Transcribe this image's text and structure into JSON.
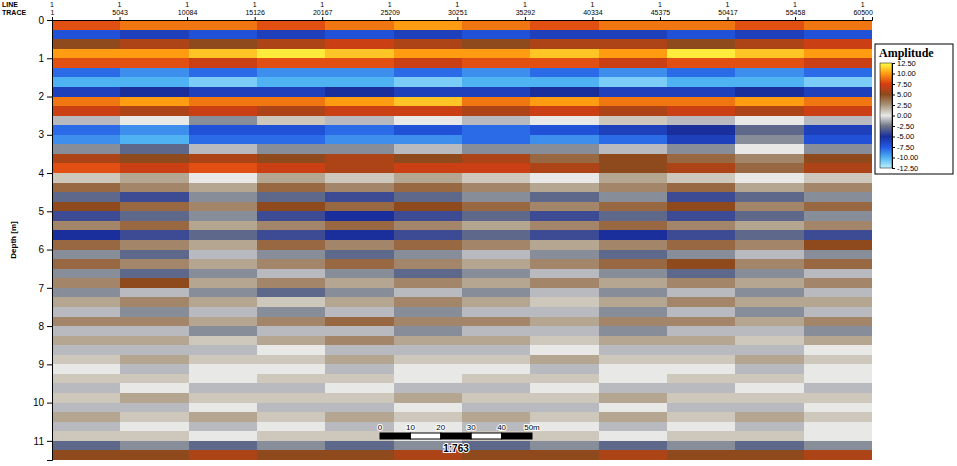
{
  "chart_data": {
    "type": "heatmap",
    "header_labels": [
      "LINE",
      "TRACE"
    ],
    "line_numbers": [
      1,
      1,
      1,
      1,
      1,
      1,
      1,
      1,
      1,
      1,
      1,
      1,
      1
    ],
    "xticks": [
      1,
      5043,
      10084,
      15126,
      20167,
      25209,
      30251,
      35292,
      40334,
      45375,
      50417,
      55458,
      60500
    ],
    "xlim": [
      1,
      61200
    ],
    "ylabel": "Depth [m]",
    "ylim": [
      0,
      11.5
    ],
    "yticks": [
      0,
      1,
      2,
      3,
      4,
      5,
      6,
      7,
      8,
      9,
      10,
      11
    ],
    "x": [
      2550,
      7650,
      12750,
      17850,
      22950,
      28050,
      33150,
      38250,
      43350,
      48450,
      53550,
      58650
    ],
    "y": [
      0.125,
      0.375,
      0.625,
      0.875,
      1.125,
      1.375,
      1.625,
      1.875,
      2.125,
      2.375,
      2.625,
      2.875,
      3.125,
      3.375,
      3.625,
      3.875,
      4.125,
      4.375,
      4.625,
      4.875,
      5.125,
      5.375,
      5.625,
      5.875,
      6.125,
      6.375,
      6.625,
      6.875,
      7.125,
      7.375,
      7.625,
      7.875,
      8.125,
      8.375,
      8.625,
      8.875,
      9.125,
      9.375,
      9.625,
      9.875,
      10.125,
      10.375,
      10.625,
      10.875,
      11.125,
      11.375
    ],
    "cells": [
      [
        8,
        9,
        9,
        8,
        9,
        10,
        9,
        8,
        9,
        9,
        8,
        9
      ],
      [
        -7,
        -6,
        -7,
        -6,
        -7,
        -6,
        -7,
        -6,
        -6,
        -7,
        -6,
        -7
      ],
      [
        5,
        6,
        5,
        6,
        7,
        6,
        5,
        6,
        6,
        5,
        6,
        7
      ],
      [
        10,
        10,
        11,
        12,
        11,
        10,
        10,
        11,
        10,
        12,
        11,
        10
      ],
      [
        8,
        8,
        7,
        8,
        8,
        7,
        8,
        8,
        7,
        8,
        8,
        7
      ],
      [
        -8,
        -9,
        -8,
        -9,
        -9,
        -8,
        -9,
        -8,
        -9,
        -8,
        -9,
        -8
      ],
      [
        -10,
        -10,
        -11,
        -10,
        -10,
        -11,
        -10,
        -10,
        -11,
        -10,
        -10,
        -11
      ],
      [
        -6,
        -5,
        -6,
        -6,
        -5,
        -6,
        -6,
        -5,
        -6,
        -6,
        -5,
        -6
      ],
      [
        9,
        10,
        9,
        9,
        10,
        11,
        9,
        10,
        9,
        9,
        10,
        9
      ],
      [
        7,
        6,
        7,
        6,
        7,
        7,
        6,
        7,
        6,
        7,
        6,
        7
      ],
      [
        -1,
        0,
        -2,
        1,
        -1,
        0,
        -1,
        0,
        1,
        -1,
        0,
        -1
      ],
      [
        -8,
        -9,
        -7,
        -7,
        -8,
        -7,
        -8,
        -7,
        -6,
        -5,
        -3,
        -6
      ],
      [
        -9,
        -10,
        -8,
        -8,
        -9,
        -9,
        -8,
        -9,
        -8,
        -6,
        -2,
        -7
      ],
      [
        -2,
        -3,
        -1,
        -2,
        -2,
        -1,
        -2,
        -2,
        -1,
        -2,
        0,
        -2
      ],
      [
        6,
        5,
        6,
        5,
        6,
        5,
        6,
        4,
        5,
        4,
        3,
        5
      ],
      [
        8,
        7,
        8,
        7,
        6,
        7,
        7,
        6,
        5,
        6,
        4,
        6
      ],
      [
        1,
        2,
        0,
        2,
        1,
        2,
        1,
        0,
        2,
        1,
        0,
        1
      ],
      [
        4,
        3,
        2,
        4,
        3,
        4,
        3,
        2,
        3,
        4,
        2,
        3
      ],
      [
        -3,
        -4,
        -2,
        -3,
        -4,
        -3,
        -2,
        -3,
        -2,
        -4,
        -3,
        -2
      ],
      [
        5,
        4,
        3,
        5,
        4,
        5,
        4,
        3,
        4,
        5,
        3,
        4
      ],
      [
        -4,
        -3,
        -2,
        -4,
        -5,
        -4,
        -3,
        -4,
        -3,
        -4,
        -3,
        -2
      ],
      [
        3,
        4,
        2,
        3,
        4,
        3,
        2,
        3,
        4,
        3,
        2,
        3
      ],
      [
        -5,
        -4,
        -3,
        -4,
        -5,
        -4,
        -3,
        -4,
        -5,
        -4,
        -3,
        -4
      ],
      [
        4,
        3,
        2,
        4,
        3,
        4,
        3,
        2,
        3,
        4,
        3,
        5
      ],
      [
        -2,
        -3,
        -1,
        -2,
        -3,
        -2,
        -1,
        -2,
        -3,
        -2,
        -1,
        -2
      ],
      [
        4,
        3,
        2,
        3,
        4,
        3,
        2,
        3,
        4,
        5,
        3,
        4
      ],
      [
        -2,
        -3,
        -2,
        -1,
        -2,
        -3,
        -2,
        -1,
        -2,
        -3,
        -2,
        -1
      ],
      [
        3,
        5,
        2,
        3,
        2,
        3,
        2,
        3,
        2,
        3,
        2,
        3
      ],
      [
        -2,
        -1,
        -2,
        -3,
        -2,
        -1,
        -2,
        -1,
        -2,
        -1,
        -2,
        -1
      ],
      [
        2,
        3,
        2,
        1,
        2,
        3,
        2,
        1,
        2,
        3,
        2,
        2
      ],
      [
        -1,
        -2,
        -1,
        -2,
        -1,
        -2,
        -1,
        -1,
        -2,
        -1,
        -2,
        -1
      ],
      [
        3,
        3,
        2,
        3,
        4,
        3,
        3,
        2,
        3,
        3,
        2,
        3
      ],
      [
        -1,
        -1,
        -2,
        -1,
        -1,
        -2,
        -1,
        -1,
        -2,
        -1,
        -1,
        -2
      ],
      [
        2,
        2,
        1,
        2,
        3,
        2,
        2,
        1,
        2,
        2,
        1,
        2
      ],
      [
        -1,
        -1,
        -1,
        0,
        -1,
        -1,
        -1,
        0,
        -1,
        -1,
        -1,
        0
      ],
      [
        1,
        2,
        1,
        1,
        2,
        1,
        1,
        2,
        1,
        1,
        2,
        1
      ],
      [
        0,
        -1,
        0,
        0,
        -1,
        0,
        0,
        -1,
        0,
        0,
        -1,
        0
      ],
      [
        1,
        1,
        0,
        1,
        1,
        0,
        1,
        1,
        0,
        1,
        1,
        0
      ],
      [
        -1,
        0,
        -1,
        -1,
        0,
        -1,
        -1,
        0,
        -1,
        -1,
        0,
        -1
      ],
      [
        1,
        2,
        1,
        1,
        1,
        2,
        1,
        1,
        2,
        1,
        1,
        1
      ],
      [
        -1,
        -1,
        0,
        -1,
        -1,
        0,
        -1,
        -1,
        0,
        -1,
        -1,
        0
      ],
      [
        2,
        1,
        2,
        1,
        2,
        1,
        2,
        1,
        2,
        1,
        2,
        1
      ],
      [
        -1,
        0,
        -1,
        0,
        -1,
        0,
        -1,
        0,
        -1,
        0,
        -1,
        0
      ],
      [
        1,
        1,
        0,
        1,
        1,
        0,
        1,
        1,
        0,
        1,
        1,
        0
      ],
      [
        -3,
        -2,
        -3,
        -2,
        -3,
        -2,
        -3,
        -2,
        -3,
        -2,
        -3,
        -2
      ],
      [
        5,
        5,
        6,
        5,
        5,
        6,
        5,
        5,
        6,
        5,
        5,
        6
      ]
    ],
    "colorbar": {
      "title": "Amplitude",
      "range": [
        -12.5,
        12.5
      ],
      "ticks": [
        {
          "value": 12.5,
          "label": "12.50"
        },
        {
          "value": 10,
          "label": "10.00"
        },
        {
          "value": 7.5,
          "label": "7.50"
        },
        {
          "value": 5,
          "label": "5.00"
        },
        {
          "value": 2.5,
          "label": "2.50"
        },
        {
          "value": 0,
          "label": "0.00"
        },
        {
          "value": -2.5,
          "label": "-2.50"
        },
        {
          "value": -5,
          "label": "-5.00"
        },
        {
          "value": -7.5,
          "label": "-7.50"
        },
        {
          "value": -10,
          "label": "-10.00"
        },
        {
          "value": -12.5,
          "label": "-12.50"
        }
      ]
    },
    "scale_bar": {
      "ticks": [
        0,
        10,
        20,
        30,
        40,
        {
          "value": 50,
          "label": "50m"
        }
      ],
      "ratio": "1:763"
    }
  }
}
